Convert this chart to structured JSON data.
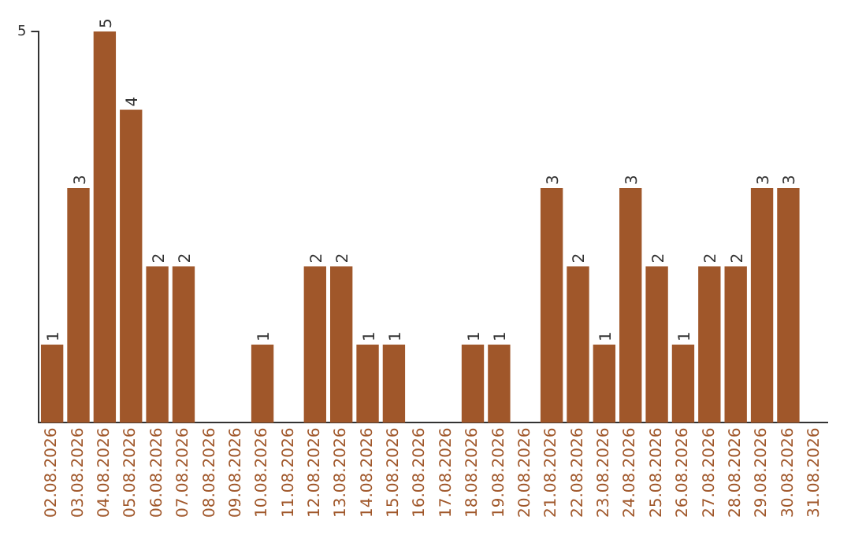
{
  "chart_data": {
    "type": "bar",
    "categories": [
      "02.08.2026",
      "03.08.2026",
      "04.08.2026",
      "05.08.2026",
      "06.08.2026",
      "07.08.2026",
      "08.08.2026",
      "09.08.2026",
      "10.08.2026",
      "11.08.2026",
      "12.08.2026",
      "13.08.2026",
      "14.08.2026",
      "15.08.2026",
      "16.08.2026",
      "17.08.2026",
      "18.08.2026",
      "19.08.2026",
      "20.08.2026",
      "21.08.2026",
      "22.08.2026",
      "23.08.2026",
      "24.08.2026",
      "25.08.2026",
      "26.08.2026",
      "27.08.2026",
      "28.08.2026",
      "29.08.2026",
      "30.08.2026",
      "31.08.2026"
    ],
    "values": [
      1,
      3,
      5,
      4,
      2,
      2,
      0,
      0,
      1,
      0,
      2,
      2,
      1,
      1,
      0,
      0,
      1,
      1,
      0,
      3,
      2,
      1,
      3,
      2,
      1,
      2,
      2,
      3,
      3,
      0
    ],
    "value_labels": [
      "1",
      "3",
      "5",
      "4",
      "2",
      "2",
      null,
      null,
      "1",
      null,
      "2",
      "2",
      "1",
      "1",
      null,
      null,
      "1",
      "1",
      null,
      "3",
      "2",
      "1",
      "3",
      "2",
      "1",
      "2",
      "2",
      "3",
      "3",
      null
    ],
    "color": "#a0572a",
    "ylim": [
      0,
      5
    ],
    "yticks": [
      5
    ]
  }
}
